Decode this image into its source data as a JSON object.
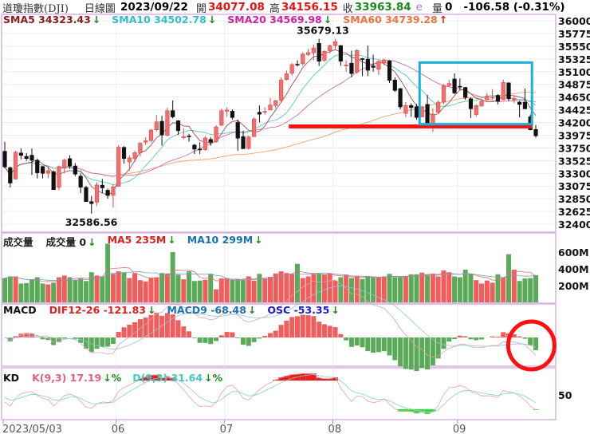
{
  "header": {
    "name": "道瓊指數(DJI)",
    "period": "日線圖",
    "date": "2023/09/22",
    "open_label": "開",
    "open": "34077.08",
    "high_label": "高",
    "high": "34156.15",
    "close_label": "收",
    "close": "33963.84",
    "e_mark": "e",
    "volume_label": "量",
    "volume": "0",
    "change": "-106.58 (-0.31%)"
  },
  "legends": {
    "price": [
      {
        "text": "SMA5 34323.43",
        "arrow": "↓",
        "color": "#8b1a1a",
        "dir": "dn"
      },
      {
        "text": "SMA10 34502.78",
        "arrow": "↓",
        "color": "#30c0c8",
        "dir": "dn"
      },
      {
        "text": "SMA20 34569.98",
        "arrow": "↓",
        "color": "#d020a0",
        "dir": "dn"
      },
      {
        "text": "SMA60 34739.28",
        "arrow": "↑",
        "color": "#f07040",
        "dir": "up"
      }
    ],
    "volume": [
      {
        "text": "成交量",
        "arrow": "",
        "color": "#222",
        "dir": "dn"
      },
      {
        "text": "成交量 0",
        "arrow": "↓",
        "color": "#222",
        "dir": "dn"
      },
      {
        "text": "MA5 235M",
        "arrow": "↓",
        "color": "#e02020",
        "dir": "dn"
      },
      {
        "text": "MA10 299M",
        "arrow": "↓",
        "color": "#1a70b0",
        "dir": "dn"
      }
    ],
    "macd": [
      {
        "text": "MACD",
        "arrow": "",
        "color": "#111",
        "dir": "dn"
      },
      {
        "text": "DIF12-26 -121.83",
        "arrow": "↓",
        "color": "#e02020",
        "dir": "dn"
      },
      {
        "text": "MACD9 -68.48",
        "arrow": "↓",
        "color": "#1a70b0",
        "dir": "dn"
      },
      {
        "text": "OSC -53.35",
        "arrow": "↓",
        "color": "#1a1ad0",
        "dir": "dn"
      }
    ],
    "kd": [
      {
        "text": "KD",
        "arrow": "",
        "color": "#111",
        "dir": "dn"
      },
      {
        "text": "K(9,3) 17.19",
        "arrow": "↓%",
        "color": "#e06080",
        "dir": "dn"
      },
      {
        "text": "D(9,3) 31.64",
        "arrow": "↓%",
        "color": "#40c8c8",
        "dir": "dn"
      }
    ]
  },
  "colors": {
    "up": "#f07070",
    "up_border": "#e04848",
    "down": "#111111",
    "vol_up": "#f25c5c",
    "vol_down": "#5aaa5a",
    "panel_border": "#d9b3e3",
    "grid": "#ececec"
  },
  "chart_data": {
    "type": "candlestick",
    "price_ticks": [
      36000,
      35775,
      35550,
      35325,
      35100,
      34875,
      34650,
      34425,
      34200,
      33975,
      33750,
      33525,
      33300,
      33075,
      32850,
      32625,
      32400
    ],
    "ylim": [
      32400,
      36000
    ],
    "high_label": "35679.13",
    "low_label": "32586.56",
    "volume_ticks": [
      "600M",
      "400M",
      "200M"
    ],
    "kd_ticks": [
      "50"
    ],
    "x_labels": [
      {
        "date": "05/03",
        "text": "2023/05/03"
      },
      {
        "date": "06/02",
        "text": "06"
      },
      {
        "date": "07/03",
        "text": "07"
      },
      {
        "date": "08/01",
        "text": "08"
      },
      {
        "date": "09/01",
        "text": "09"
      }
    ],
    "candles": [
      [
        "05/03",
        33690,
        33860,
        33390,
        33414
      ],
      [
        "05/04",
        33400,
        33420,
        33050,
        33128
      ],
      [
        "05/05",
        33200,
        33700,
        33190,
        33674
      ],
      [
        "05/08",
        33660,
        33740,
        33550,
        33618
      ],
      [
        "05/09",
        33600,
        33660,
        33520,
        33561
      ],
      [
        "05/10",
        33620,
        33740,
        33270,
        33531
      ],
      [
        "05/11",
        33530,
        33560,
        33210,
        33309
      ],
      [
        "05/12",
        33420,
        33430,
        33210,
        33300
      ],
      [
        "05/15",
        33300,
        33420,
        33210,
        33348
      ],
      [
        "05/16",
        33330,
        33350,
        33010,
        33012
      ],
      [
        "05/17",
        33050,
        33440,
        33000,
        33420
      ],
      [
        "05/18",
        33390,
        33560,
        33300,
        33535
      ],
      [
        "05/19",
        33560,
        33620,
        33380,
        33426
      ],
      [
        "05/22",
        33430,
        33480,
        33250,
        33286
      ],
      [
        "05/23",
        33250,
        33300,
        32950,
        33055
      ],
      [
        "05/24",
        33050,
        33080,
        32800,
        32799
      ],
      [
        "05/25",
        32800,
        32900,
        32586.56,
        32764
      ],
      [
        "05/26",
        32790,
        33140,
        32720,
        33093
      ],
      [
        "05/30",
        33090,
        33200,
        32950,
        33042
      ],
      [
        "05/31",
        33000,
        33030,
        32850,
        32908
      ],
      [
        "06/01",
        32910,
        33110,
        32690,
        33061
      ],
      [
        "06/02",
        33070,
        33800,
        33060,
        33762
      ],
      [
        "06/05",
        33760,
        33780,
        33470,
        33562
      ],
      [
        "06/06",
        33500,
        33620,
        33350,
        33573
      ],
      [
        "06/07",
        33560,
        33700,
        33500,
        33665
      ],
      [
        "06/08",
        33660,
        33850,
        33600,
        33833
      ],
      [
        "06/09",
        33850,
        33940,
        33800,
        33876
      ],
      [
        "06/12",
        33880,
        34080,
        33850,
        34066
      ],
      [
        "06/13",
        34070,
        34330,
        34040,
        34212
      ],
      [
        "06/14",
        34220,
        34320,
        33790,
        33979
      ],
      [
        "06/15",
        33970,
        34460,
        33950,
        34408
      ],
      [
        "06/16",
        34410,
        34590,
        34270,
        34299
      ],
      [
        "06/20",
        34230,
        34240,
        33980,
        34053
      ],
      [
        "06/21",
        33930,
        34100,
        33900,
        33951
      ],
      [
        "06/22",
        33960,
        34000,
        33860,
        33946
      ],
      [
        "06/23",
        33800,
        33820,
        33640,
        33727
      ],
      [
        "06/26",
        33730,
        33850,
        33640,
        33714
      ],
      [
        "06/27",
        33720,
        33960,
        33700,
        33927
      ],
      [
        "06/28",
        33900,
        33940,
        33790,
        33852
      ],
      [
        "06/29",
        33860,
        34150,
        33840,
        34122
      ],
      [
        "06/30",
        34150,
        34450,
        34140,
        34408
      ],
      [
        "07/03",
        34400,
        34470,
        34300,
        34418
      ],
      [
        "07/05",
        34400,
        34430,
        34250,
        34288
      ],
      [
        "07/06",
        34200,
        34250,
        33700,
        33922
      ],
      [
        "07/07",
        33950,
        34050,
        33730,
        33735
      ],
      [
        "07/10",
        33740,
        33970,
        33720,
        33944
      ],
      [
        "07/11",
        33950,
        34290,
        33950,
        34262
      ],
      [
        "07/12",
        34380,
        34500,
        34200,
        34347
      ],
      [
        "07/13",
        34380,
        34470,
        34340,
        34395
      ],
      [
        "07/14",
        34420,
        34630,
        34420,
        34509
      ],
      [
        "07/17",
        34500,
        34600,
        34450,
        34585
      ],
      [
        "07/18",
        34590,
        35000,
        34550,
        34952
      ],
      [
        "07/19",
        34960,
        35120,
        34940,
        35061
      ],
      [
        "07/20",
        35070,
        35250,
        35030,
        35225
      ],
      [
        "07/21",
        35230,
        35300,
        35190,
        35228
      ],
      [
        "07/24",
        35240,
        35440,
        35210,
        35411
      ],
      [
        "07/25",
        35400,
        35500,
        35380,
        35438
      ],
      [
        "07/26",
        35430,
        35580,
        35300,
        35520
      ],
      [
        "07/27",
        35600,
        35680,
        35200,
        35283
      ],
      [
        "07/28",
        35300,
        35480,
        35270,
        35459
      ],
      [
        "07/31",
        35470,
        35580,
        35420,
        35560
      ],
      [
        "08/01",
        35560,
        35679.13,
        35500,
        35630
      ],
      [
        "08/02",
        35560,
        35570,
        35200,
        35283
      ],
      [
        "08/03",
        35200,
        35300,
        35100,
        35216
      ],
      [
        "08/04",
        35250,
        35470,
        35000,
        35066
      ],
      [
        "08/07",
        35090,
        35500,
        35060,
        35473
      ],
      [
        "08/08",
        35330,
        35340,
        35020,
        35314
      ],
      [
        "08/09",
        35320,
        35560,
        35020,
        35123
      ],
      [
        "08/10",
        35200,
        35400,
        35100,
        35176
      ],
      [
        "08/11",
        35140,
        35300,
        35040,
        35281
      ],
      [
        "08/14",
        35250,
        35330,
        35210,
        35308
      ],
      [
        "08/15",
        35290,
        35300,
        34900,
        34946
      ],
      [
        "08/16",
        34950,
        35000,
        34740,
        34766
      ],
      [
        "08/17",
        34800,
        34810,
        34430,
        34475
      ],
      [
        "08/18",
        34360,
        34560,
        34290,
        34500
      ],
      [
        "08/21",
        34500,
        34540,
        34300,
        34464
      ],
      [
        "08/22",
        34480,
        34530,
        34250,
        34288
      ],
      [
        "08/23",
        34300,
        34500,
        34290,
        34473
      ],
      [
        "08/24",
        34520,
        34690,
        34090,
        34100
      ],
      [
        "08/25",
        34130,
        34450,
        34030,
        34347
      ],
      [
        "08/28",
        34380,
        34590,
        34350,
        34559
      ],
      [
        "08/29",
        34560,
        34880,
        34520,
        34852
      ],
      [
        "08/30",
        34850,
        34950,
        34830,
        34890
      ],
      [
        "08/31",
        34970,
        35070,
        34700,
        34722
      ],
      [
        "09/01",
        34840,
        34980,
        34780,
        34838
      ],
      [
        "09/05",
        34820,
        34830,
        34600,
        34642
      ],
      [
        "09/06",
        34620,
        34640,
        34280,
        34443
      ],
      [
        "09/07",
        34340,
        34520,
        34300,
        34500
      ],
      [
        "09/08",
        34490,
        34620,
        34480,
        34577
      ],
      [
        "09/11",
        34600,
        34720,
        34580,
        34664
      ],
      [
        "09/12",
        34630,
        34790,
        34600,
        34646
      ],
      [
        "09/13",
        34680,
        34700,
        34520,
        34576
      ],
      [
        "09/14",
        34600,
        34960,
        34600,
        34907
      ],
      [
        "09/15",
        34900,
        34910,
        34580,
        34618
      ],
      [
        "09/18",
        34600,
        34680,
        34540,
        34625
      ],
      [
        "09/19",
        34560,
        34580,
        34290,
        34518
      ],
      [
        "09/20",
        34560,
        34800,
        34440,
        34441
      ],
      [
        "09/21",
        34300,
        34340,
        34060,
        34070
      ],
      [
        "09/22",
        34077.08,
        34156.15,
        33930,
        33963.84
      ]
    ],
    "volume_m": [
      290,
      310,
      310,
      225,
      230,
      270,
      300,
      225,
      215,
      235,
      300,
      320,
      300,
      270,
      285,
      255,
      360,
      320,
      310,
      700,
      340,
      370,
      355,
      290,
      350,
      265,
      250,
      295,
      300,
      350,
      345,
      600,
      330,
      275,
      370,
      255,
      260,
      270,
      340,
      155,
      285,
      290,
      270,
      280,
      270,
      310,
      260,
      340,
      285,
      305,
      345,
      370,
      350,
      340,
      460,
      290,
      310,
      335,
      340,
      335,
      345,
      260,
      300,
      330,
      290,
      310,
      280,
      310,
      300,
      300,
      310,
      340,
      300,
      300,
      310,
      335,
      335,
      355,
      330,
      340,
      310,
      380,
      360,
      310,
      300,
      390,
      340,
      265,
      225,
      260,
      235,
      335,
      300,
      575,
      390,
      255,
      285,
      290,
      325
    ],
    "annotations": {
      "support_line": {
        "price": 34130,
        "from": "07/20",
        "to": "09/21",
        "color": "#ff1010"
      },
      "range_box": {
        "from": "08/23",
        "to": "09/21",
        "top": 35260,
        "bottom": 34170,
        "color": "#1ab0d8"
      },
      "macd_circle": {
        "date": "09/20",
        "color": "#ff1010"
      }
    }
  }
}
